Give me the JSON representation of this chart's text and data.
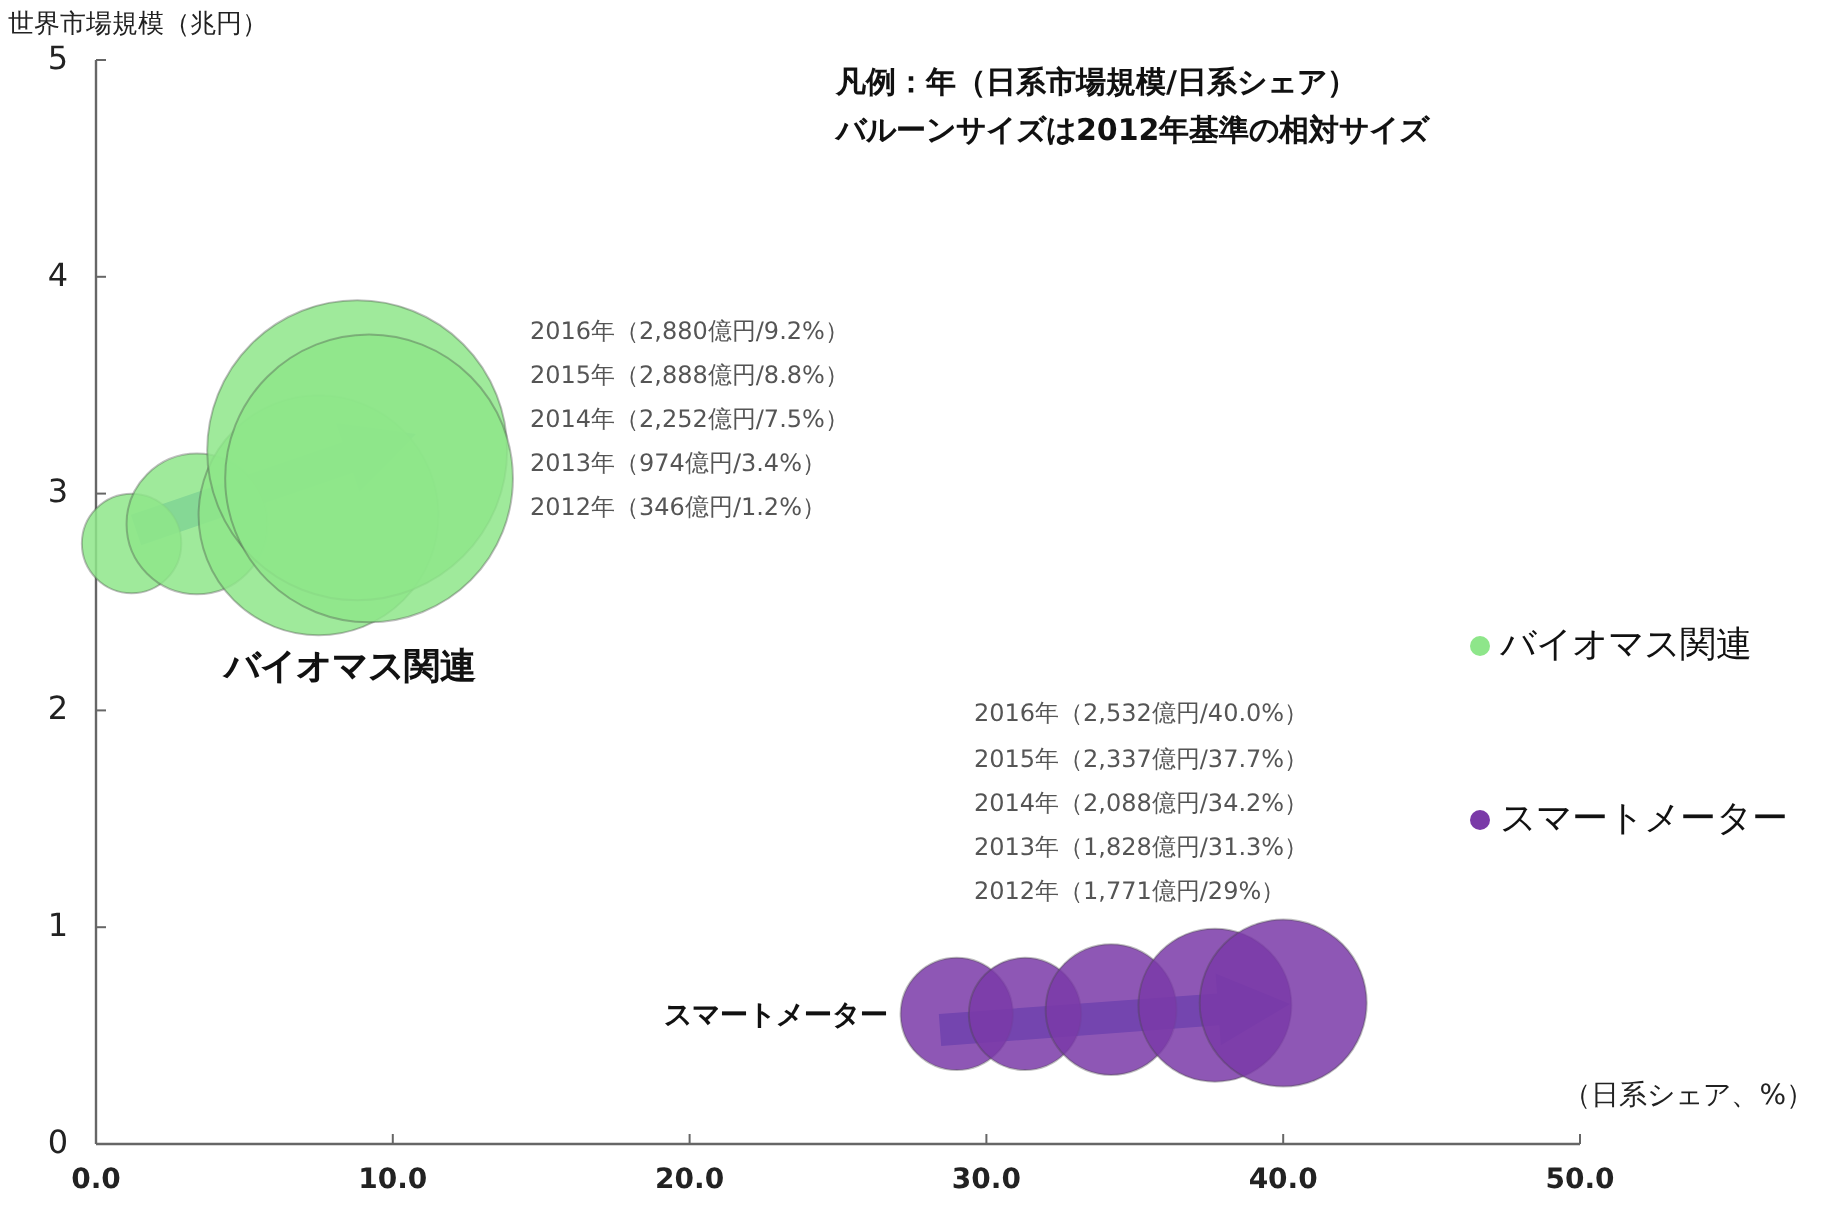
{
  "chart_data": {
    "type": "bubble",
    "ylabel": "世界市場規模（兆円）",
    "xlabel": "（日系シェア、%）",
    "xlim": [
      0,
      50
    ],
    "xticks": [
      {
        "value": 0,
        "label": "0.0"
      },
      {
        "value": 10,
        "label": "10.0"
      },
      {
        "value": 20,
        "label": "20.0"
      },
      {
        "value": 30,
        "label": "30.0"
      },
      {
        "value": 40,
        "label": "40.0"
      },
      {
        "value": 50,
        "label": "50.0"
      }
    ],
    "ylim": [
      0,
      5
    ],
    "yticks": [
      0,
      1,
      2,
      3,
      4,
      5
    ],
    "grid": false,
    "legend": "right",
    "series": [
      {
        "name": "バイオマス関連",
        "color": "#8ee68a",
        "x": [
          1.2,
          3.4,
          7.5,
          8.8,
          9.2
        ],
        "values": [
          2.77,
          2.86,
          2.9,
          3.2,
          3.07
        ],
        "sizes": [
          0.11,
          0.22,
          0.64,
          1,
          0.92
        ]
      },
      {
        "name": "スマートメーター",
        "color": "#7a3aa8",
        "x": [
          29,
          31.3,
          34.2,
          37.7,
          40
        ],
        "values": [
          0.6,
          0.6,
          0.62,
          0.64,
          0.65
        ],
        "sizes": [
          0.14,
          0.14,
          0.19,
          0.26,
          0.31
        ]
      }
    ],
    "annotations": [
      "凡例：年（日系市場規模/日系シェア）",
      "バルーンサイズは2012年基準の相対サイズ",
      "2016年（2,880億円/9.2%）",
      "2015年（2,888億円/8.8%）",
      "2014年（2,252億円/7.5%）",
      "2013年（974億円/3.4%）",
      "2012年（346億円/1.2%）",
      "2016年（2,532億円/40.0%）",
      "2015年（2,337億円/37.7%）",
      "2014年（2,088億円/34.2%）",
      "2013年（1,828億円/31.3%）",
      "2012年（1,771億円/29%）",
      "バイオマス関連",
      "スマートメーター"
    ]
  }
}
